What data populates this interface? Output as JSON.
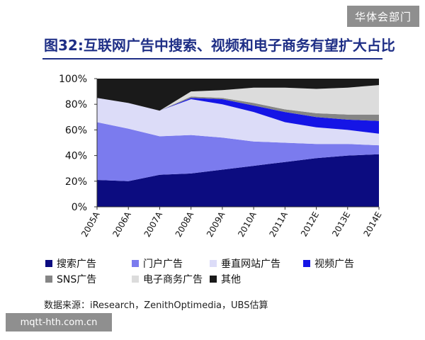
{
  "watermark_top": "华体会部门",
  "watermark_bottom": "mqtt-hth.com.cn",
  "source_note": "数据来源：iResearch，ZenithOptimedia，UBS估算",
  "chart_data": {
    "type": "area",
    "stacked": true,
    "title": "图32:互联网广告中搜索、视频和电子商务有望扩大占比",
    "categories": [
      "2005A",
      "2006A",
      "2007A",
      "2008A",
      "2009A",
      "2010A",
      "2011A",
      "2012E",
      "2013E",
      "2014E"
    ],
    "ylim": [
      0,
      100
    ],
    "yticks": [
      "0%",
      "20%",
      "40%",
      "60%",
      "80%",
      "100%"
    ],
    "legend_position": "bottom",
    "series": [
      {
        "name": "搜索广告",
        "color": "#0c0c80",
        "values": [
          21,
          20,
          25,
          26,
          29,
          32,
          35,
          38,
          40,
          41
        ]
      },
      {
        "name": "门户广告",
        "color": "#7b7bee",
        "values": [
          45,
          41,
          30,
          30,
          25,
          19,
          15,
          11,
          9,
          7
        ]
      },
      {
        "name": "垂直网站广告",
        "color": "#dcdcf8",
        "values": [
          19,
          20,
          20,
          28,
          26,
          23,
          16,
          13,
          11,
          9
        ]
      },
      {
        "name": "视频广告",
        "color": "#1515e6",
        "values": [
          0,
          0,
          0,
          1,
          4,
          5,
          8,
          8,
          8,
          10
        ]
      },
      {
        "name": "SNS广告",
        "color": "#858585",
        "values": [
          0,
          0,
          0,
          1,
          1,
          2,
          2,
          3,
          4,
          5
        ]
      },
      {
        "name": "电子商务广告",
        "color": "#dcdcdc",
        "values": [
          0,
          0,
          0,
          4,
          6,
          12,
          17,
          19,
          21,
          23
        ]
      },
      {
        "name": "其他",
        "color": "#1a1a1a",
        "values": [
          15,
          19,
          25,
          10,
          9,
          7,
          7,
          8,
          7,
          5
        ]
      }
    ]
  }
}
